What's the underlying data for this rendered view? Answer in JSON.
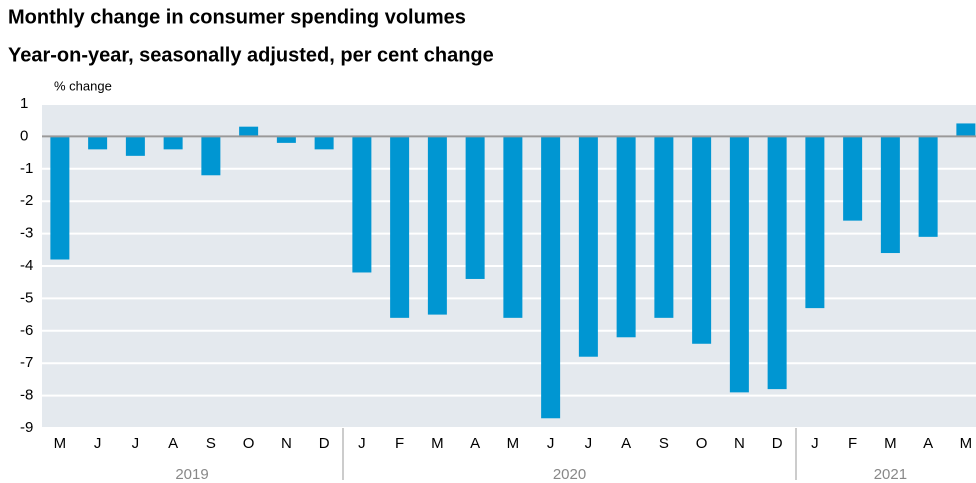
{
  "chart_data": {
    "type": "bar",
    "title": "Monthly change in consumer spending volumes",
    "subtitle": "Year-on-year, seasonally adjusted, per cent change",
    "y_label": "% change",
    "categories": [
      "M",
      "J",
      "J",
      "A",
      "S",
      "O",
      "N",
      "D",
      "J",
      "F",
      "M",
      "A",
      "M",
      "J",
      "J",
      "A",
      "S",
      "O",
      "N",
      "D",
      "J",
      "F",
      "M",
      "A",
      "M"
    ],
    "values": [
      -3.8,
      -0.4,
      -0.6,
      -0.4,
      -1.2,
      0.3,
      -0.2,
      -0.4,
      -4.2,
      -5.6,
      -5.5,
      -4.4,
      -5.6,
      -8.7,
      -6.8,
      -6.2,
      -5.6,
      -6.4,
      -7.9,
      -7.8,
      -5.3,
      -2.6,
      -3.6,
      -3.1,
      0.4
    ],
    "color": "#0096d2",
    "year_labels": [
      "2019",
      "2020",
      "2021"
    ],
    "ylim": [
      -9,
      1
    ],
    "yticks": [
      1,
      0,
      -1,
      -2,
      -3,
      -4,
      -5,
      -6,
      -7,
      -8,
      -9
    ],
    "grid": true
  }
}
